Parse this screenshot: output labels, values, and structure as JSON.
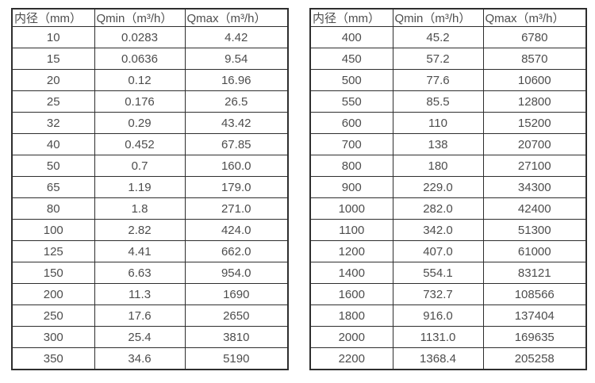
{
  "colors": {
    "border": "#2e2e2e",
    "text": "#4d4d4d",
    "background": "#ffffff"
  },
  "tables": [
    {
      "name": "flow-rate-table-small-diameters",
      "headers": [
        "内径（mm）",
        "Qmin（m³/h）",
        "Qmax（m³/h）"
      ],
      "rows": [
        [
          "10",
          "0.0283",
          "4.42"
        ],
        [
          "15",
          "0.0636",
          "9.54"
        ],
        [
          "20",
          "0.12",
          "16.96"
        ],
        [
          "25",
          "0.176",
          "26.5"
        ],
        [
          "32",
          "0.29",
          "43.42"
        ],
        [
          "40",
          "0.452",
          "67.85"
        ],
        [
          "50",
          "0.7",
          "160.0"
        ],
        [
          "65",
          "1.19",
          "179.0"
        ],
        [
          "80",
          "1.8",
          "271.0"
        ],
        [
          "100",
          "2.82",
          "424.0"
        ],
        [
          "125",
          "4.41",
          "662.0"
        ],
        [
          "150",
          "6.63",
          "954.0"
        ],
        [
          "200",
          "11.3",
          "1690"
        ],
        [
          "250",
          "17.6",
          "2650"
        ],
        [
          "300",
          "25.4",
          "3810"
        ],
        [
          "350",
          "34.6",
          "5190"
        ]
      ]
    },
    {
      "name": "flow-rate-table-large-diameters",
      "headers": [
        "内径（mm）",
        "Qmin（m³/h）",
        "Qmax（m³/h）"
      ],
      "rows": [
        [
          "400",
          "45.2",
          "6780"
        ],
        [
          "450",
          "57.2",
          "8570"
        ],
        [
          "500",
          "77.6",
          "10600"
        ],
        [
          "550",
          "85.5",
          "12800"
        ],
        [
          "600",
          "110",
          "15200"
        ],
        [
          "700",
          "138",
          "20700"
        ],
        [
          "800",
          "180",
          "27100"
        ],
        [
          "900",
          "229.0",
          "34300"
        ],
        [
          "1000",
          "282.0",
          "42400"
        ],
        [
          "1100",
          "342.0",
          "51300"
        ],
        [
          "1200",
          "407.0",
          "61000"
        ],
        [
          "1400",
          "554.1",
          "83121"
        ],
        [
          "1600",
          "732.7",
          "108566"
        ],
        [
          "1800",
          "916.0",
          "137404"
        ],
        [
          "2000",
          "1131.0",
          "169635"
        ],
        [
          "2200",
          "1368.4",
          "205258"
        ]
      ]
    }
  ]
}
